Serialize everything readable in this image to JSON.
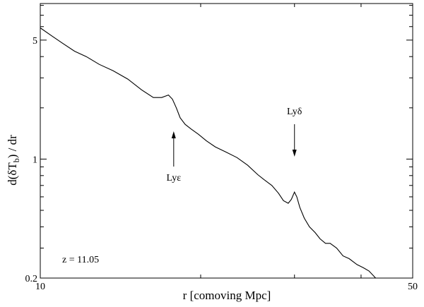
{
  "chart_data": {
    "type": "line",
    "x_scale": "log",
    "y_scale": "log",
    "xlim": [
      10,
      50
    ],
    "ylim": [
      0.2,
      8.2
    ],
    "grid": false,
    "xlabel": "r [comoving Mpc]",
    "ylabel": "d(δT_b) / dr",
    "x_tick_labels": [
      {
        "value": 10,
        "label": "10"
      },
      {
        "value": 50,
        "label": "50"
      }
    ],
    "y_tick_labels": [
      {
        "value": 0.2,
        "label": "0.2"
      },
      {
        "value": 1,
        "label": "1"
      },
      {
        "value": 5,
        "label": "5"
      }
    ],
    "x_minor_ticks": [
      20,
      30,
      40
    ],
    "y_minor_ticks": [
      0.3,
      0.4,
      0.5,
      0.6,
      0.7,
      0.8,
      0.9,
      2,
      3,
      4,
      6,
      7,
      8
    ],
    "series": [
      {
        "x": [
          10.0,
          10.5,
          11.0,
          11.6,
          12.2,
          12.9,
          13.7,
          14.6,
          15.5,
          16.3,
          16.9,
          17.4,
          17.7,
          18.0,
          18.3,
          18.7,
          19.2,
          19.8,
          20.5,
          21.3,
          22.3,
          23.4,
          24.5,
          25.6,
          26.4,
          27.2,
          28.0,
          28.6,
          29.2,
          29.6,
          30.0,
          30.3,
          30.7,
          31.3,
          32.0,
          32.8,
          33.5,
          34.3,
          35.0,
          36.0,
          37.0,
          38.0,
          39.3,
          40.4,
          41.4,
          42.6
        ],
        "y": [
          5.9,
          5.3,
          4.8,
          4.3,
          4.0,
          3.6,
          3.3,
          2.95,
          2.55,
          2.3,
          2.3,
          2.38,
          2.25,
          2.0,
          1.75,
          1.6,
          1.5,
          1.4,
          1.28,
          1.18,
          1.1,
          1.02,
          0.92,
          0.81,
          0.75,
          0.7,
          0.63,
          0.57,
          0.55,
          0.58,
          0.64,
          0.6,
          0.52,
          0.45,
          0.4,
          0.37,
          0.34,
          0.32,
          0.32,
          0.3,
          0.27,
          0.26,
          0.24,
          0.23,
          0.22,
          0.2
        ]
      }
    ],
    "annotations": [
      {
        "text": "Lyε",
        "arrow_direction": "up",
        "x": 17.8
      },
      {
        "text": "Lyδ",
        "arrow_direction": "down",
        "x": 30.0
      }
    ],
    "corner_label": "z = 11.05"
  }
}
